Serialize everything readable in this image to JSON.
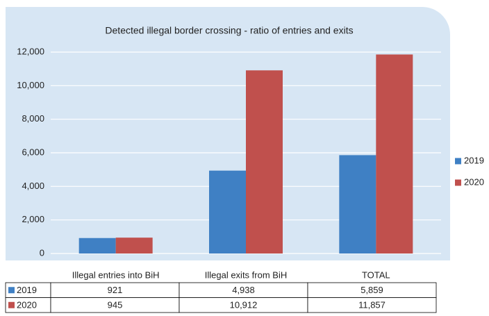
{
  "chart_data": {
    "type": "bar",
    "title": "Detected illegal border crossing - ratio of entries and exits",
    "categories": [
      "Illegal entries into BiH",
      "Illegal exits from BiH",
      "TOTAL"
    ],
    "series": [
      {
        "name": "2019",
        "color": "#3f80c4",
        "values": [
          921,
          4938,
          5859
        ],
        "value_labels": [
          "921",
          "4,938",
          "5,859"
        ]
      },
      {
        "name": "2020",
        "color": "#c0504d",
        "values": [
          945,
          10912,
          11857
        ],
        "value_labels": [
          "945",
          "10,912",
          "11,857"
        ]
      }
    ],
    "ylim": [
      0,
      12000
    ],
    "yticks": [
      0,
      {
        "value": 2000,
        "label": "2,000"
      },
      {
        "value": 4000,
        "label": "4,000"
      },
      {
        "value": 6000,
        "label": "6,000"
      },
      {
        "value": 8000,
        "label": "8,000"
      },
      {
        "value": 10000,
        "label": "10,000"
      },
      {
        "value": 12000,
        "label": "12,000"
      }
    ],
    "grid": true,
    "legend": "right"
  }
}
